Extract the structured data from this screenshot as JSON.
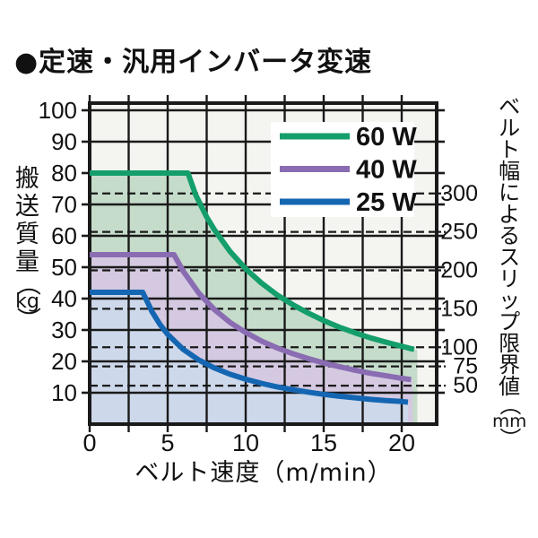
{
  "page": {
    "title": "●定速・汎用インバータ変速"
  },
  "colors": {
    "page_bg": "#ffffff",
    "plot_bg": "#f4f4f1",
    "grid": "#1a1a1a",
    "frame": "#1a1a1a",
    "legend_bg": "#ffffff",
    "text": "#111111"
  },
  "chart_data": {
    "type": "line",
    "title": "定速・汎用インバータ変速",
    "xlabel": "ベルト速度（m/min）",
    "ylabel": "搬送質量（kg）",
    "y2label": "ベルト幅によるスリップ限界値（mm）",
    "xlim": [
      0,
      22.25
    ],
    "ylim": [
      0,
      102.3
    ],
    "grid": true,
    "legend_position": "top-right",
    "x_tick_labels": [
      0,
      5,
      10,
      15,
      20
    ],
    "x_grid_step": 2.5,
    "y_tick_labels": [
      100,
      90,
      80,
      70,
      60,
      50,
      40,
      30,
      20,
      10
    ],
    "y_grid_step": 10,
    "right_axis_marks": [
      {
        "mm": 300,
        "kg": 73.5
      },
      {
        "mm": 250,
        "kg": 61.25
      },
      {
        "mm": 200,
        "kg": 49
      },
      {
        "mm": 150,
        "kg": 36.75
      },
      {
        "mm": 100,
        "kg": 24.5
      },
      {
        "mm": 75,
        "kg": 18.4
      },
      {
        "mm": 50,
        "kg": 12.25
      }
    ],
    "series": [
      {
        "name": "60 W",
        "color": "#149e6b",
        "fill": "#c5dcca",
        "fill_end_x": 21.0,
        "points": [
          [
            0,
            80
          ],
          [
            6.3,
            80
          ],
          [
            6.8,
            73
          ],
          [
            7.5,
            66
          ],
          [
            8,
            61.9
          ],
          [
            9,
            55
          ],
          [
            10,
            49.5
          ],
          [
            11,
            45
          ],
          [
            12,
            41.2
          ],
          [
            13,
            38.1
          ],
          [
            14,
            35.4
          ],
          [
            15,
            33
          ],
          [
            16,
            30.9
          ],
          [
            17,
            29.1
          ],
          [
            18,
            27.5
          ],
          [
            19,
            26.1
          ],
          [
            20,
            24.8
          ],
          [
            20.8,
            23.8
          ]
        ]
      },
      {
        "name": "40 W",
        "color": "#8a6cb2",
        "fill": "#d4c9e1",
        "fill_end_x": 20.7,
        "points": [
          [
            0,
            54
          ],
          [
            5.4,
            54
          ],
          [
            6,
            48.7
          ],
          [
            7,
            41.7
          ],
          [
            8,
            36.5
          ],
          [
            9,
            32.4
          ],
          [
            10,
            29.2
          ],
          [
            11,
            26.5
          ],
          [
            12,
            24.3
          ],
          [
            13,
            22.5
          ],
          [
            14,
            20.9
          ],
          [
            15,
            19.5
          ],
          [
            16,
            18.3
          ],
          [
            17,
            17.2
          ],
          [
            18,
            16.2
          ],
          [
            19,
            15.4
          ],
          [
            20,
            14.6
          ],
          [
            20.6,
            14.2
          ]
        ]
      },
      {
        "name": "25 W",
        "color": "#1566b2",
        "fill": "#cdd8eb",
        "fill_end_x": 20.4,
        "points": [
          [
            0,
            42
          ],
          [
            3.4,
            42
          ],
          [
            4,
            35.8
          ],
          [
            4.5,
            31.8
          ],
          [
            5,
            28.6
          ],
          [
            6,
            23.8
          ],
          [
            7,
            20.4
          ],
          [
            8,
            17.9
          ],
          [
            9,
            15.9
          ],
          [
            10,
            14.3
          ],
          [
            11,
            13
          ],
          [
            12,
            11.9
          ],
          [
            13,
            11
          ],
          [
            14,
            10.2
          ],
          [
            15,
            9.5
          ],
          [
            16,
            8.9
          ],
          [
            17,
            8.4
          ],
          [
            18,
            7.9
          ],
          [
            19,
            7.5
          ],
          [
            20,
            7.2
          ],
          [
            20.4,
            7.0
          ]
        ]
      }
    ]
  }
}
